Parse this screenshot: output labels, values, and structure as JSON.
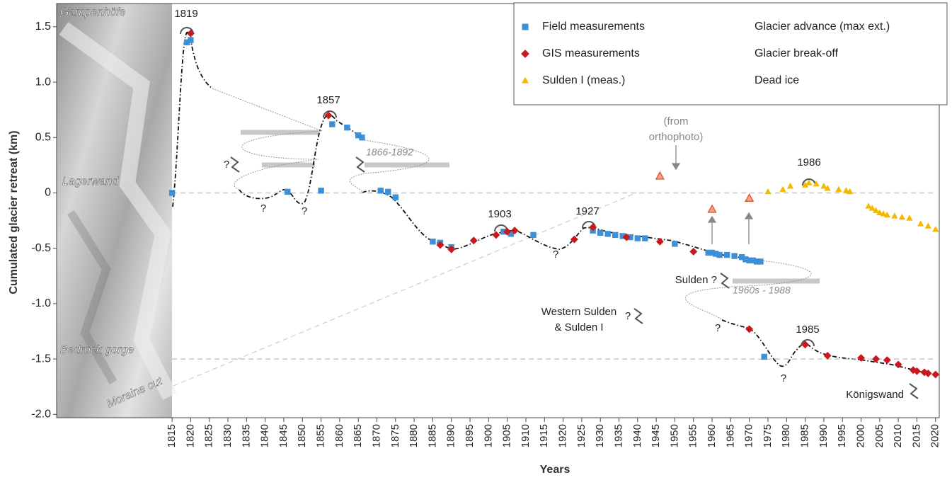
{
  "chart_data": {
    "type": "scatter",
    "xlabel": "Years",
    "ylabel": "Cumulated glacier retreat (km)",
    "xlim": [
      1784,
      2021
    ],
    "ylim": [
      -2.03,
      1.71
    ],
    "xticks": [
      1815,
      1820,
      1825,
      1830,
      1835,
      1840,
      1845,
      1850,
      1855,
      1860,
      1865,
      1870,
      1875,
      1880,
      1885,
      1890,
      1895,
      1900,
      1905,
      1910,
      1915,
      1920,
      1925,
      1930,
      1935,
      1940,
      1945,
      1950,
      1955,
      1960,
      1965,
      1970,
      1975,
      1980,
      1985,
      1990,
      1995,
      2000,
      2005,
      2010,
      2015,
      2020
    ],
    "yticks": [
      1.5,
      {
        "value": 1.0,
        "label": "1.0"
      },
      0.5,
      0,
      -0.5,
      {
        "value": -1.0,
        "label": "-1.0"
      },
      -1.5,
      {
        "value": -2.0,
        "label": "-2.0"
      }
    ],
    "reference_lines": [
      0,
      -1.5
    ],
    "series": [
      {
        "name": "Field measurements",
        "color": "#3d8fd6",
        "marker": "square",
        "x": [
          1815,
          1819,
          1820,
          1846,
          1855,
          1858,
          1862,
          1865,
          1866,
          1871,
          1873,
          1875,
          1885,
          1887,
          1890,
          1904,
          1906,
          1912,
          1928,
          1930,
          1932,
          1934,
          1936,
          1938,
          1940,
          1942,
          1950,
          1959,
          1960,
          1961,
          1962,
          1964,
          1966,
          1968,
          1969,
          1970,
          1971,
          1972,
          1973,
          1974
        ],
        "values": [
          0,
          1.36,
          1.38,
          0.01,
          0.02,
          0.62,
          0.59,
          0.52,
          0.5,
          0.02,
          0.01,
          -0.04,
          -0.44,
          -0.45,
          -0.49,
          -0.35,
          -0.37,
          -0.38,
          -0.34,
          -0.36,
          -0.37,
          -0.38,
          -0.39,
          -0.4,
          -0.41,
          -0.41,
          -0.46,
          -0.54,
          -0.54,
          -0.55,
          -0.56,
          -0.56,
          -0.57,
          -0.58,
          -0.6,
          -0.61,
          -0.61,
          -0.62,
          -0.62,
          -1.48
        ]
      },
      {
        "name": "GIS measurements",
        "color": "#c8191e",
        "marker": "diamond",
        "x": [
          1820,
          1857,
          1887,
          1890,
          1896,
          1902,
          1905,
          1907,
          1923,
          1928,
          1937,
          1946,
          1955,
          1970,
          1985,
          1991,
          2000,
          2004,
          2007,
          2010,
          2014,
          2015,
          2017,
          2018,
          2020
        ],
        "values": [
          1.44,
          0.7,
          -0.47,
          -0.51,
          -0.43,
          -0.38,
          -0.35,
          -0.34,
          -0.42,
          -0.31,
          -0.4,
          -0.44,
          -0.53,
          -1.23,
          -1.37,
          -1.47,
          -1.49,
          -1.5,
          -1.51,
          -1.55,
          -1.6,
          -1.61,
          -1.62,
          -1.63,
          -1.64
        ]
      },
      {
        "name": "Sulden I (meas.)",
        "color": "#f5b800",
        "marker": "triangle",
        "x": [
          1975,
          1979,
          1981,
          1985,
          1986,
          1988,
          1990,
          1991,
          1994,
          1996,
          1997,
          2002,
          2003,
          2004,
          2005,
          2006,
          2007,
          2009,
          2011,
          2013,
          2016,
          2018,
          2020
        ],
        "values": [
          0.01,
          0.03,
          0.06,
          0.07,
          0.09,
          0.08,
          0.06,
          0.04,
          0.03,
          0.02,
          0.01,
          -0.12,
          -0.14,
          -0.16,
          -0.18,
          -0.19,
          -0.2,
          -0.21,
          -0.22,
          -0.23,
          -0.28,
          -0.3,
          -0.33
        ]
      }
    ],
    "orthophoto_points": {
      "color": "#f9a48a",
      "edge_color": "#e0502a",
      "x": [
        1946,
        1960,
        1970
      ],
      "values": [
        0.15,
        -0.15,
        -0.05
      ]
    },
    "legend_symbols": [
      "Glacier advance (max ext.)",
      "Glacier break-off",
      "Dead ice"
    ],
    "annotations": [
      "1819",
      "1857",
      "1903",
      "1927",
      "1986",
      "1985",
      "(from",
      "orthophoto)",
      "1866-1892",
      "1960s - 1988",
      "Sulden ?",
      "Western Sulden",
      "& Sulden I",
      "?",
      "Königswand",
      "Gampenhöfe",
      "Lagerwand",
      "Bedrock gorge",
      "Moraine cut",
      "?",
      "?",
      "?",
      "?",
      "?",
      "?"
    ]
  }
}
